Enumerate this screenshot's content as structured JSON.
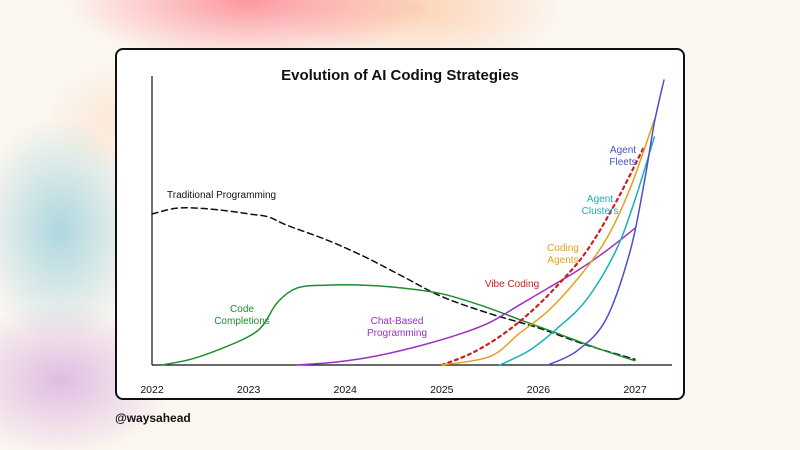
{
  "handle": "@waysahead",
  "chart_data": {
    "type": "line",
    "title": "Evolution of AI Coding Strategies",
    "xlabel": "",
    "ylabel": "",
    "xlim": [
      2022,
      2027.3
    ],
    "ylim": [
      0,
      100
    ],
    "x_ticks": [
      "2022",
      "2023",
      "2024",
      "2025",
      "2026",
      "2027"
    ],
    "grid": false,
    "series": [
      {
        "name": "Traditional Programming",
        "color": "#111111",
        "dash": "6,4",
        "labels": [
          "Traditional Programming"
        ],
        "points": [
          [
            2022.0,
            53
          ],
          [
            2022.25,
            55
          ],
          [
            2022.5,
            55
          ],
          [
            2022.8,
            54
          ],
          [
            2023.0,
            53
          ],
          [
            2023.2,
            52
          ],
          [
            2023.4,
            49
          ],
          [
            2023.8,
            44
          ],
          [
            2024.2,
            38
          ],
          [
            2024.6,
            31
          ],
          [
            2025.0,
            24
          ],
          [
            2025.5,
            18
          ],
          [
            2026.0,
            13
          ],
          [
            2026.5,
            7
          ],
          [
            2027.0,
            2
          ]
        ]
      },
      {
        "name": "Code Completions",
        "color": "#1a8f2a",
        "dash": "",
        "labels": [
          "Code",
          "Completions"
        ],
        "points": [
          [
            2022.1,
            0
          ],
          [
            2022.4,
            2
          ],
          [
            2022.7,
            5.5
          ],
          [
            2023.0,
            10
          ],
          [
            2023.15,
            14
          ],
          [
            2023.3,
            22
          ],
          [
            2023.5,
            27
          ],
          [
            2023.8,
            28
          ],
          [
            2024.2,
            28
          ],
          [
            2024.6,
            27
          ],
          [
            2025.0,
            25
          ],
          [
            2025.4,
            21
          ],
          [
            2025.8,
            16
          ],
          [
            2026.2,
            11
          ],
          [
            2026.6,
            6
          ],
          [
            2027.0,
            1.5
          ]
        ]
      },
      {
        "name": "Chat-Based Programming",
        "color": "#9b2fc8",
        "dash": "",
        "labels": [
          "Chat-Based",
          "Programming"
        ],
        "points": [
          [
            2023.5,
            0
          ],
          [
            2023.9,
            1
          ],
          [
            2024.3,
            3
          ],
          [
            2024.8,
            7
          ],
          [
            2025.2,
            11
          ],
          [
            2025.5,
            15
          ],
          [
            2025.8,
            21
          ],
          [
            2026.1,
            27
          ],
          [
            2026.4,
            33
          ],
          [
            2026.7,
            40
          ],
          [
            2027.0,
            48
          ]
        ]
      },
      {
        "name": "Vibe Coding",
        "color": "#cc2020",
        "dash": "3,4",
        "labels": [
          "Vibe Coding"
        ],
        "points": [
          [
            2025.0,
            0
          ],
          [
            2025.3,
            4
          ],
          [
            2025.6,
            10
          ],
          [
            2025.9,
            18
          ],
          [
            2026.2,
            28
          ],
          [
            2026.5,
            40
          ],
          [
            2026.8,
            57
          ],
          [
            2027.1,
            77
          ]
        ]
      },
      {
        "name": "Coding Agents",
        "color": "#e5a020",
        "dash": "",
        "labels": [
          "Coding",
          "Agents"
        ],
        "points": [
          [
            2025.0,
            0
          ],
          [
            2025.5,
            3
          ],
          [
            2025.8,
            11
          ],
          [
            2026.1,
            19
          ],
          [
            2026.4,
            30
          ],
          [
            2026.7,
            44
          ],
          [
            2026.95,
            62
          ],
          [
            2027.2,
            86
          ]
        ]
      },
      {
        "name": "Agent Clusters",
        "color": "#18b0b8",
        "dash": "",
        "labels": [
          "Agent",
          "Clusters"
        ],
        "points": [
          [
            2025.6,
            0
          ],
          [
            2025.9,
            5
          ],
          [
            2026.2,
            13
          ],
          [
            2026.5,
            23
          ],
          [
            2026.8,
            40
          ],
          [
            2027.0,
            58
          ],
          [
            2027.2,
            80
          ]
        ]
      },
      {
        "name": "Agent Fleets",
        "color": "#4a4fc8",
        "dash": "",
        "labels": [
          "Agent",
          "Fleets"
        ],
        "points": [
          [
            2026.1,
            0
          ],
          [
            2026.4,
            5
          ],
          [
            2026.7,
            16
          ],
          [
            2026.95,
            40
          ],
          [
            2027.1,
            65
          ],
          [
            2027.2,
            85
          ],
          [
            2027.3,
            100
          ]
        ]
      }
    ]
  }
}
